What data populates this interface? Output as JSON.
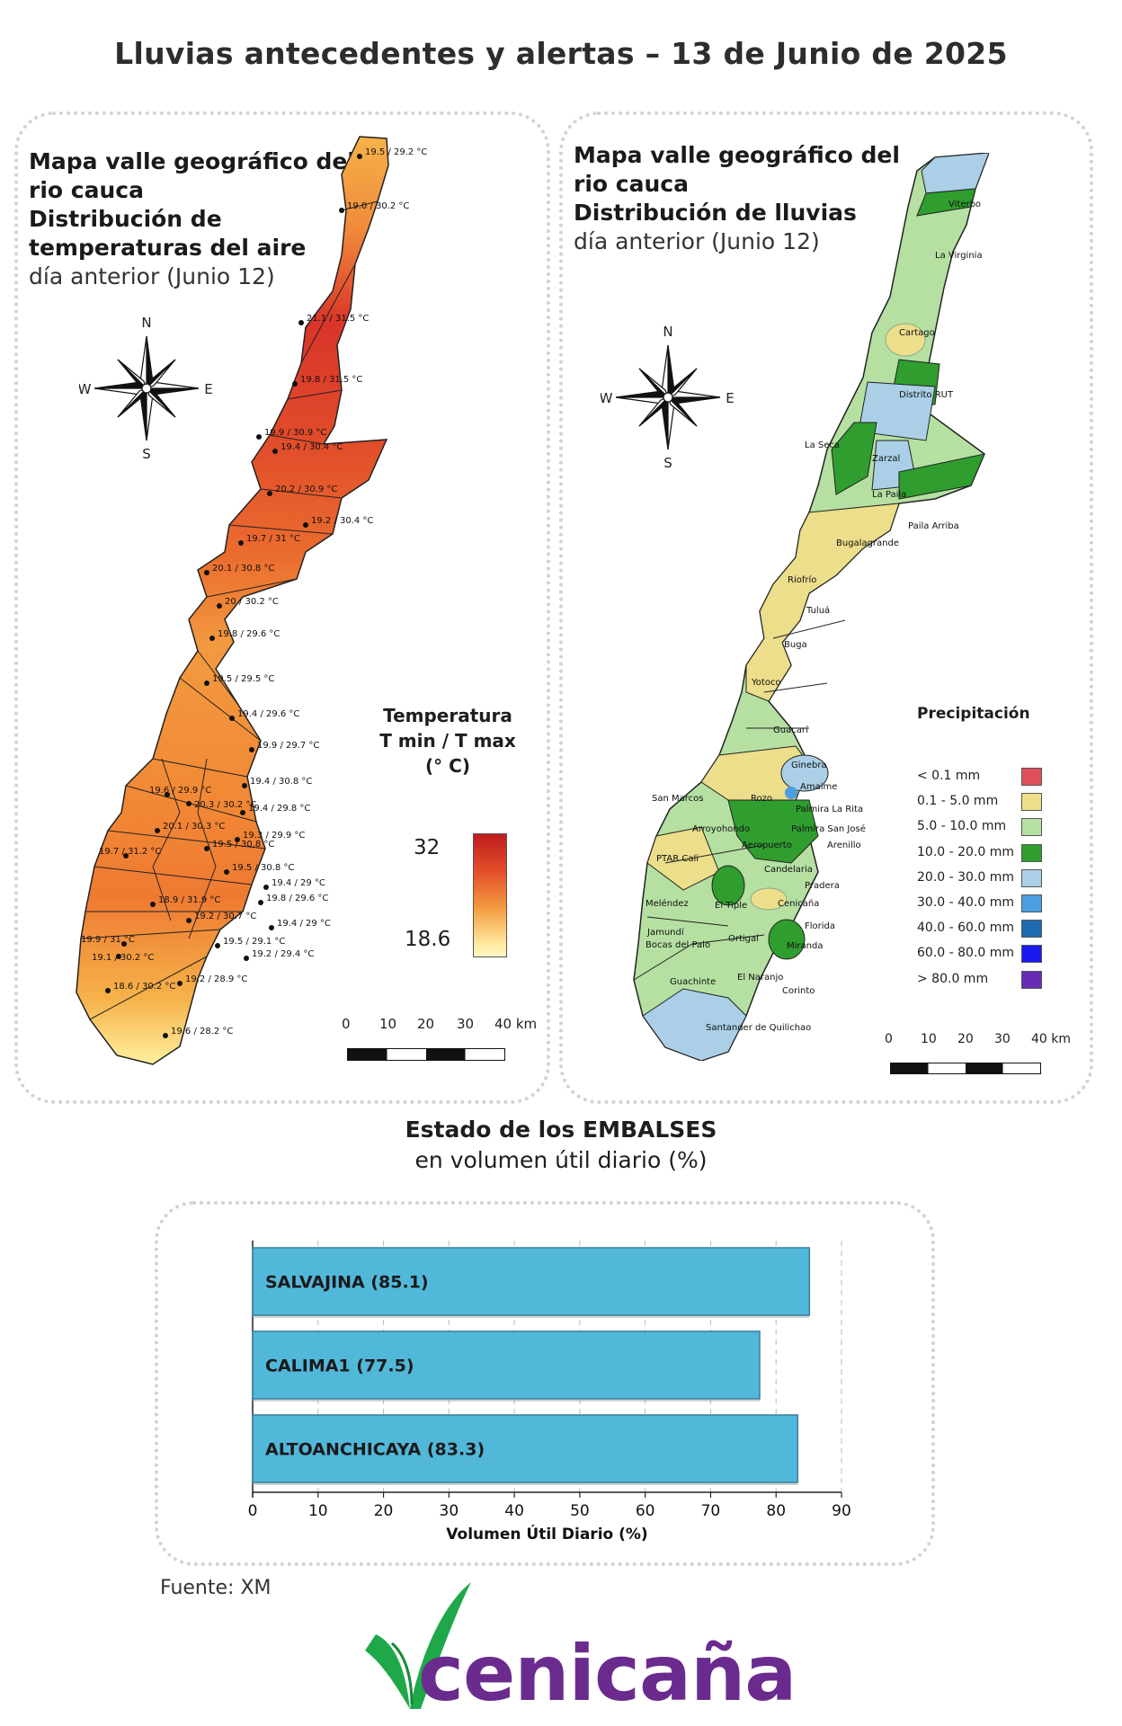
{
  "title": "Lluvias antecedentes y alertas – 13 de Junio de 2025",
  "temp_map": {
    "line1": "Mapa valle geográfico del",
    "line2": "rio cauca",
    "line3": "Distribución de",
    "line4": "temperaturas del aire",
    "line5": "día anterior (Junio 12)",
    "legend_line1": "Temperatura",
    "legend_line2": "T min / T max",
    "legend_line3": "(° C)",
    "legend_max": "32",
    "legend_min": "18.6",
    "scale_labels": [
      "0",
      "10",
      "20",
      "30",
      "40 km"
    ],
    "stations": [
      "19.5 / 29.2 °C",
      "19.0 / 30.2 °C",
      "21.1 / 31.5 °C",
      "19.8 / 31.5 °C",
      "19.9 / 30.9 °C",
      "19.4 / 30.4 °C",
      "20.2 / 30.9 °C",
      "19.2 / 30.4 °C",
      "19.7 / 31 °C",
      "20.1 / 30.8 °C",
      "20 / 30.2 °C",
      "19.8 / 29.6 °C",
      "19.5 / 29.5 °C",
      "19.4 / 29.6 °C",
      "19.9 / 29.7 °C",
      "19.6 / 29.9 °C",
      "19.4 / 30.8 °C",
      "20.3 / 30.2 °C",
      "19.4 / 29.8 °C",
      "20.1 / 30.3 °C",
      "19.3 / 29.9 °C",
      "19.7 / 31.2 °C",
      "19.5 / 30.8 °C",
      "19.5 / 30.8 °C",
      "19.4 / 29 °C",
      "18.9 / 31.9 °C",
      "19.8 / 29.6 °C",
      "19.2 / 30.7 °C",
      "19.4 / 29 °C",
      "19.9 / 31 °C",
      "19.5 / 29.1 °C",
      "19.1 / 30.2 °C",
      "19.2 / 29.4 °C",
      "18.6 / 30.2 °C",
      "19.2 / 28.9 °C",
      "19.6 / 28.2 °C"
    ],
    "colors": {
      "hot": "#cc1f1f",
      "warm": "#e85a2a",
      "mid": "#f0892f",
      "cool": "#f6b24a",
      "cold": "#fff3a0"
    }
  },
  "rain_map": {
    "line1": "Mapa valle geográfico del",
    "line2": "rio cauca",
    "line3": "Distribución de lluvias",
    "line4": "día anterior (Junio 12)",
    "legend_title": "Precipitación",
    "legend": [
      {
        "label": "< 0.1 mm",
        "color": "#e0505a"
      },
      {
        "label": "0.1 - 5.0 mm",
        "color": "#ecde8a"
      },
      {
        "label": "5.0 - 10.0 mm",
        "color": "#b5e0a2"
      },
      {
        "label": "10.0 - 20.0 mm",
        "color": "#2f9e2f"
      },
      {
        "label": "20.0 - 30.0 mm",
        "color": "#aacfe6"
      },
      {
        "label": "30.0 - 40.0 mm",
        "color": "#4b9fe0"
      },
      {
        "label": "40.0 - 60.0 mm",
        "color": "#1f6bb0"
      },
      {
        "label": "60.0 - 80.0 mm",
        "color": "#1a1aee"
      },
      {
        "label": "> 80.0 mm",
        "color": "#6a2ab8"
      }
    ],
    "places": [
      "Viterbo",
      "La Virginia",
      "Cartago",
      "Distrito RUT",
      "La Seca",
      "Zarzal",
      "La Paila",
      "Paila Arriba",
      "Bugalagrande",
      "Riofrío",
      "Tuluá",
      "Buga",
      "Yotoco",
      "Guacarí",
      "Ginebra",
      "Amaime",
      "San Marcos",
      "Rozo",
      "Palmira La Rita",
      "Arroyohondo",
      "Palmira San José",
      "Aeropuerto",
      "Arenillo",
      "PTAR Cali",
      "Candelaria",
      "Pradera",
      "Meléndez",
      "El Tiple",
      "Cenicaña",
      "Jamundí",
      "Bocas del Palo",
      "Ortigal",
      "Florida",
      "Miranda",
      "Guachinte",
      "El Naranjo",
      "Corinto",
      "Santander de Quilichao"
    ],
    "scale_labels": [
      "0",
      "10",
      "20",
      "30",
      "40 km"
    ]
  },
  "reservoirs": {
    "title": "Estado de los EMBALSES",
    "subtitle": "en volumen útil diario (%)",
    "bar_color": "#52b8da"
  },
  "chart_data": {
    "type": "bar",
    "orientation": "horizontal",
    "categories": [
      "SALVAJINA (85.1)",
      "CALIMA1 (77.5)",
      "ALTOANCHICAYA (83.3)"
    ],
    "values": [
      85.1,
      77.5,
      83.3
    ],
    "xlabel": "Volumen Útil Diario (%)",
    "xlim": [
      0,
      90
    ],
    "xticks": [
      "0",
      "10",
      "20",
      "30",
      "40",
      "50",
      "60",
      "70",
      "80",
      "90"
    ],
    "grid": true
  },
  "source": "Fuente: XM",
  "logo": "cenicaña",
  "compass": {
    "n": "N",
    "s": "S",
    "e": "E",
    "w": "W"
  }
}
